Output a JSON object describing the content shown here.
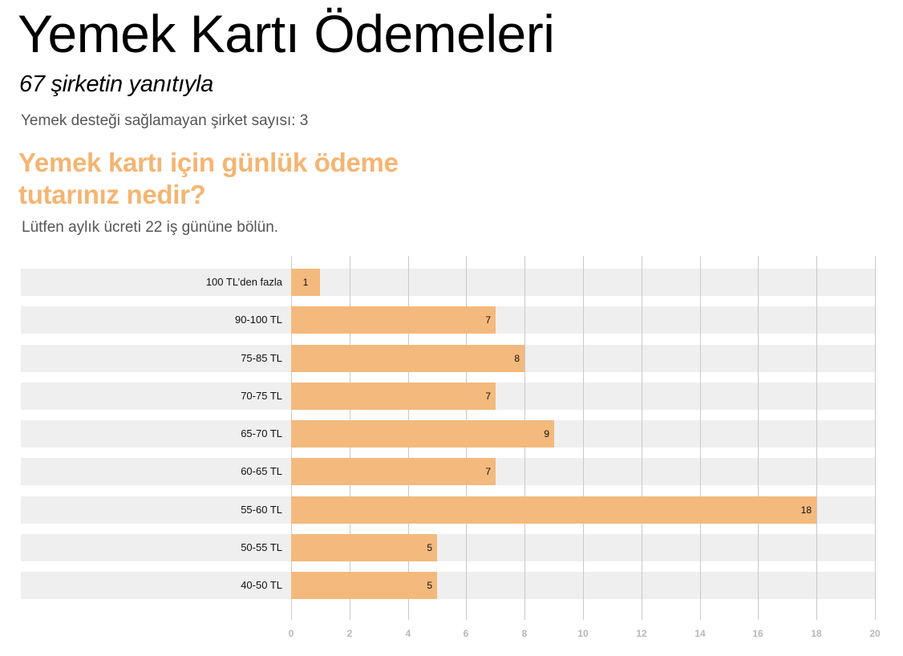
{
  "header": {
    "title": "Yemek Kartı Ödemeleri",
    "subtitle": "67 şirketin yanıtıyla",
    "note": "Yemek desteği sağlamayan şirket sayısı: 3"
  },
  "question": {
    "title": "Yemek kartı için günlük ödeme tutarınız nedir?",
    "instruction": "Lütfen aylık ücreti 22 iş gününe bölün."
  },
  "colors": {
    "accent": "#f4b572",
    "bar": "#f4b97c",
    "band": "#efefef",
    "grid": "#c8c8c8",
    "tick_label": "#b8b8b8"
  },
  "chart_data": {
    "type": "bar",
    "orientation": "horizontal",
    "title": "Yemek kartı için günlük ödeme tutarınız nedir?",
    "subtitle": "Lütfen aylık ücreti 22 iş gününe bölün.",
    "categories": [
      "100 TL’den fazla",
      "90-100 TL",
      "75-85 TL",
      "70-75 TL",
      "65-70 TL",
      "60-65 TL",
      "55-60 TL",
      "50-55 TL",
      "40-50 TL"
    ],
    "values": [
      1,
      7,
      8,
      7,
      9,
      7,
      18,
      5,
      5
    ],
    "xlabel": "",
    "ylabel": "",
    "xlim": [
      0,
      20
    ],
    "xticks": [
      "0",
      "2",
      "4",
      "6",
      "8",
      "10",
      "12",
      "14",
      "16",
      "18",
      "20"
    ],
    "grid": true,
    "data_labels": true,
    "legend": null
  }
}
